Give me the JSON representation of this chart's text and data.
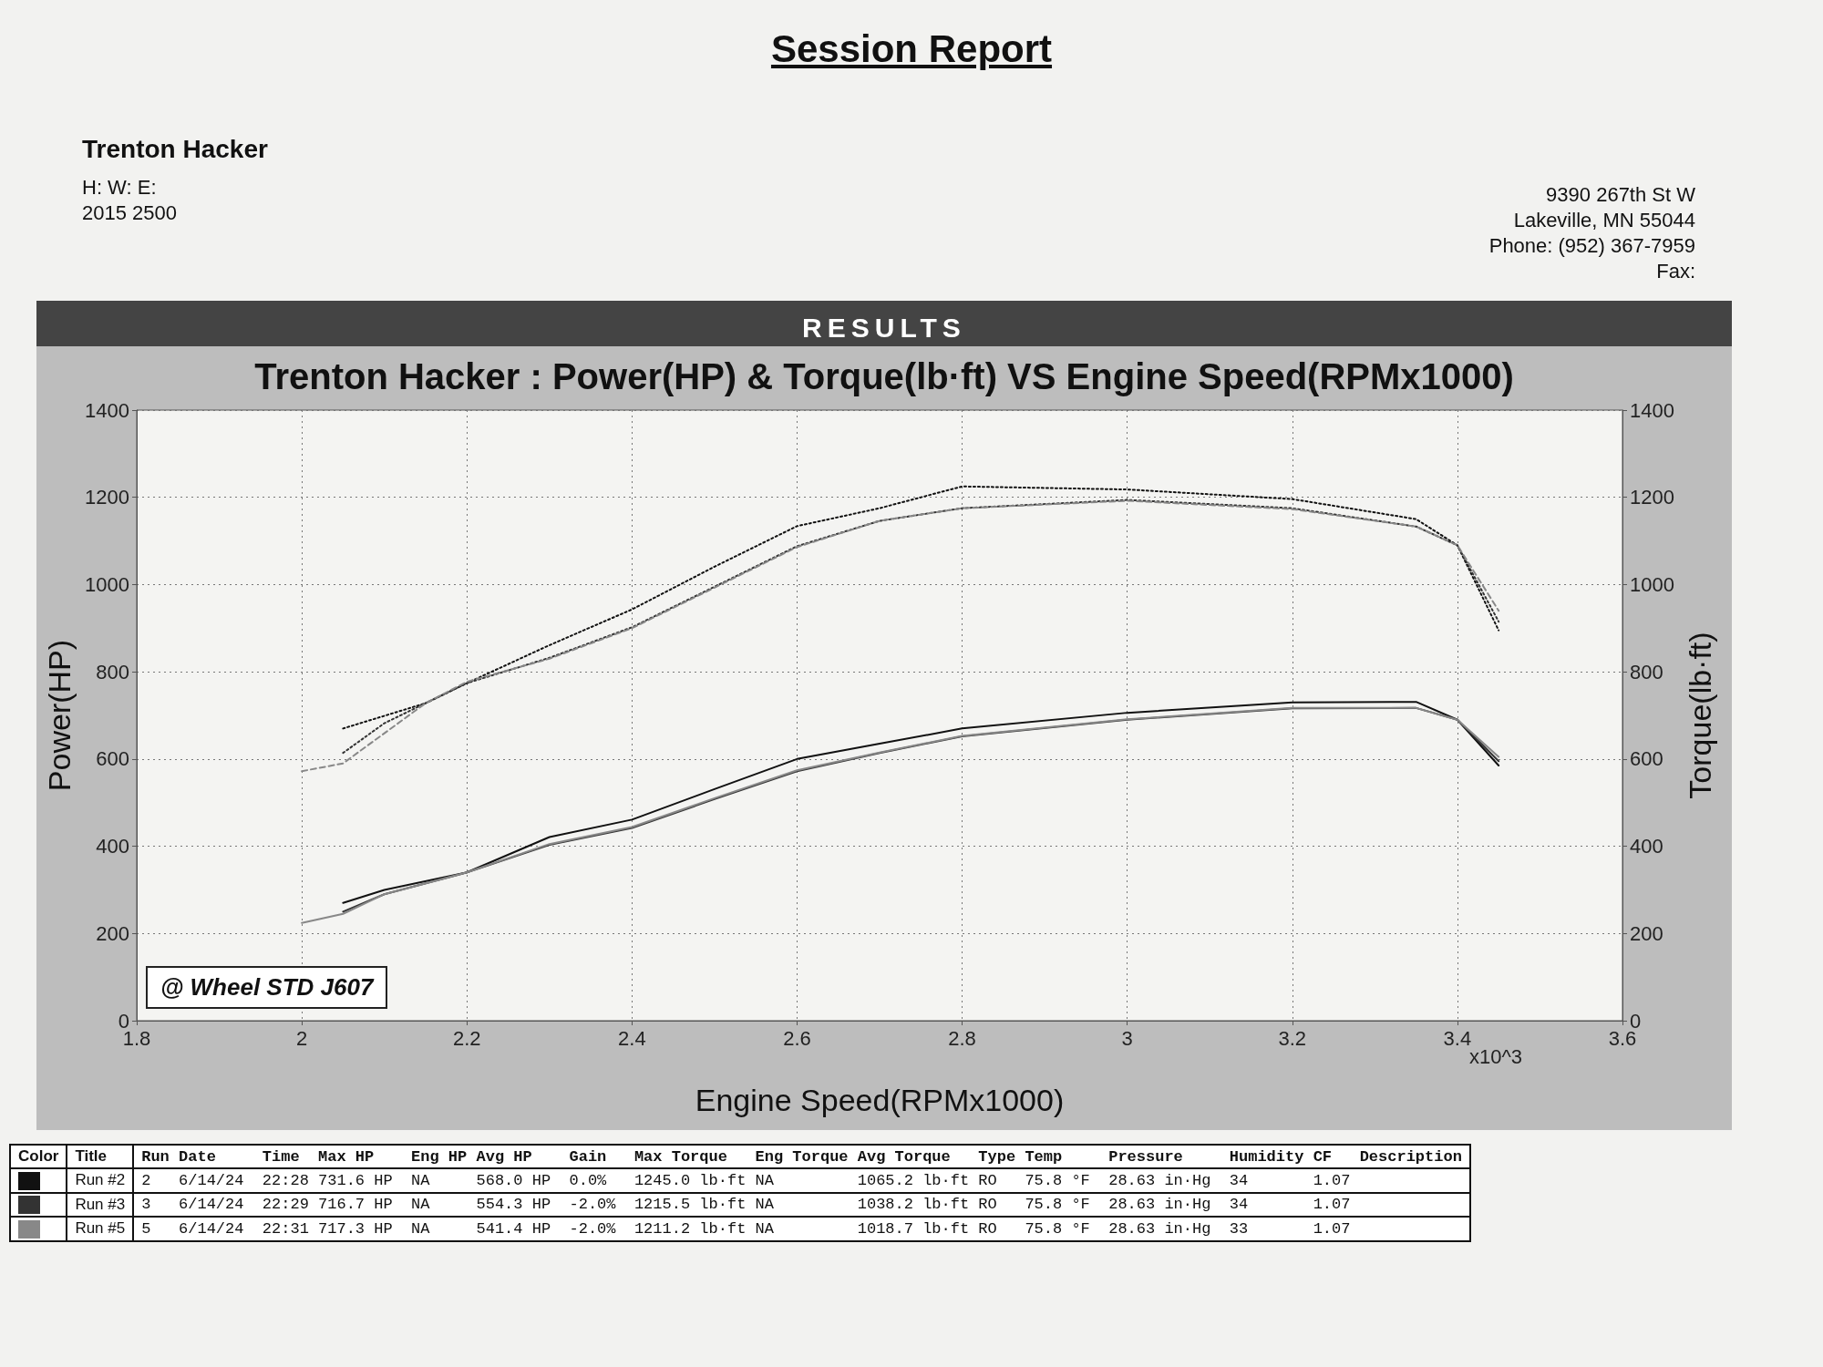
{
  "chart_data": {
    "type": "line",
    "title": "Session Report",
    "subtitle": "Trenton Hacker : Power(HP) & Torque(lb·ft) VS Engine Speed(RPMx1000)",
    "xlabel": "Engine Speed(RPMx1000)",
    "ylabel": "Power(HP)",
    "y2label": "Torque(lb·ft)",
    "xlim": [
      1.8,
      3.6
    ],
    "xticks": [
      1.8,
      2,
      2.2,
      2.4,
      2.6,
      2.8,
      3,
      3.2,
      3.4,
      3.6
    ],
    "ylim": [
      0,
      1400
    ],
    "yticks": [
      0,
      200,
      400,
      600,
      800,
      1000,
      1200,
      1400
    ],
    "y2lim": [
      0,
      1400
    ],
    "y2ticks": [
      0,
      200,
      400,
      600,
      800,
      1000,
      1200,
      1400
    ],
    "grid": true,
    "legend": "bottom",
    "marker": "none",
    "series": [
      {
        "name": "Run #2",
        "color": "#111111",
        "line_style": "solid",
        "x": [
          2.05,
          2.1,
          2.2,
          2.3,
          2.4,
          2.5,
          2.6,
          2.7,
          2.8,
          3.0,
          3.2,
          3.35,
          3.4,
          3.45
        ],
        "values": [
          270,
          300,
          340,
          421,
          461,
          531,
          600,
          635,
          670,
          706,
          730,
          731,
          690,
          585
        ]
      },
      {
        "name": "Run #3",
        "color": "#333333",
        "line_style": "solid",
        "x": [
          2.05,
          2.1,
          2.2,
          2.3,
          2.4,
          2.5,
          2.6,
          2.7,
          2.8,
          3.0,
          3.2,
          3.35,
          3.4,
          3.45
        ],
        "values": [
          250,
          290,
          340,
          403,
          442,
          508,
          572,
          614,
          652,
          690,
          716,
          717,
          690,
          595
        ]
      },
      {
        "name": "Run #5",
        "color": "#888888",
        "line_style": "solid",
        "x": [
          2.0,
          2.05,
          2.1,
          2.2,
          2.3,
          2.4,
          2.5,
          2.6,
          2.7,
          2.8,
          3.0,
          3.2,
          3.35,
          3.4,
          3.45
        ],
        "values": [
          224,
          245,
          290,
          340,
          405,
          444,
          510,
          574,
          615,
          653,
          691,
          717,
          717,
          690,
          605
        ]
      },
      {
        "color": "#111111",
        "line_style": "dotted",
        "x": [
          2.05,
          2.1,
          2.15,
          2.2,
          2.3,
          2.4,
          2.5,
          2.6,
          2.7,
          2.8,
          3.0,
          3.2,
          3.35,
          3.4,
          3.45
        ],
        "values": [
          670,
          699,
          728,
          774,
          861,
          943,
          1041,
          1134,
          1175,
          1225,
          1218,
          1196,
          1150,
          1090,
          895
        ]
      },
      {
        "color": "#333333",
        "line_style": "dotted",
        "x": [
          2.05,
          2.1,
          2.15,
          2.2,
          2.3,
          2.4,
          2.5,
          2.6,
          2.7,
          2.8,
          3.0,
          3.2,
          3.35,
          3.4,
          3.45
        ],
        "values": [
          614,
          682,
          728,
          774,
          832,
          902,
          995,
          1088,
          1146,
          1175,
          1194,
          1175,
          1133,
          1090,
          915
        ]
      },
      {
        "color": "#888888",
        "line_style": "dashed",
        "x": [
          2.0,
          2.05,
          2.1,
          2.15,
          2.2,
          2.3,
          2.4,
          2.5,
          2.6,
          2.7,
          2.8,
          3.0,
          3.2,
          3.35,
          3.4,
          3.45
        ],
        "values": [
          572,
          590,
          659,
          728,
          777,
          830,
          900,
          993,
          1086,
          1146,
          1175,
          1192,
          1173,
          1133,
          1090,
          940
        ]
      }
    ],
    "annotations": [
      "Trenton Hacker",
      "H:     W:     E:",
      "2015 2500",
      "9390 267th St W",
      "Lakeville, MN 55044",
      "Phone: (952) 367-7959",
      "Fax:",
      "RESULTS",
      "@ Wheel STD J607",
      "x10^3",
      "Color",
      "Title",
      "Run Date     Time  Max HP    Eng HP Avg HP    Gain   Max Torque   Eng Torque Avg Torque   Type Temp     Pressure     Humidity CF   Description",
      "2   6/14/24  22:28 731.6 HP  NA     568.0 HP  0.0%   1245.0 lb·ft NA         1065.2 lb·ft RO   75.8 °F  28.63 in·Hg  34       1.07",
      "3   6/14/24  22:29 716.7 HP  NA     554.3 HP  -2.0%  1215.5 lb·ft NA         1038.2 lb·ft RO   75.8 °F  28.63 in·Hg  34       1.07",
      "5   6/14/24  22:31 717.3 HP  NA     541.4 HP  -2.0%  1211.2 lb·ft NA         1018.7 lb·ft RO   75.8 °F  28.63 in·Hg  33       1.07"
    ]
  }
}
